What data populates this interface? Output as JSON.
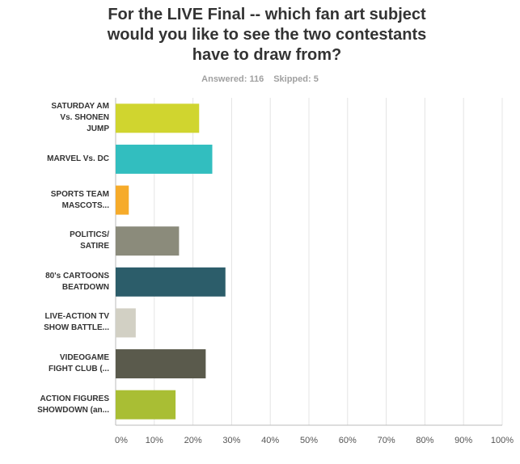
{
  "title_lines": [
    "For the LIVE Final -- which fan art subject",
    "would you like to see the two contestants",
    "have to draw from?"
  ],
  "stats": {
    "answered": "Answered: 116",
    "skipped": "Skipped: 5"
  },
  "chart_data": {
    "type": "bar",
    "orientation": "horizontal",
    "categories": [
      [
        "SATURDAY AM",
        "Vs. SHONEN",
        "JUMP"
      ],
      [
        "MARVEL Vs. DC"
      ],
      [
        "SPORTS TEAM",
        "MASCOTS..."
      ],
      [
        "POLITICS/",
        "SATIRE"
      ],
      [
        "80's CARTOONS",
        "BEATDOWN"
      ],
      [
        "LIVE-ACTION TV",
        "SHOW BATTLE..."
      ],
      [
        "VIDEOGAME",
        "FIGHT CLUB (..."
      ],
      [
        "ACTION FIGURES",
        "SHOWDOWN (an..."
      ]
    ],
    "values": [
      21.6,
      25.0,
      3.4,
      16.4,
      28.4,
      5.2,
      23.3,
      15.5
    ],
    "colors": [
      "#d0d52f",
      "#32bebf",
      "#f6ab2a",
      "#8b8b7b",
      "#2c5d6a",
      "#d2d0c4",
      "#5a5a4c",
      "#a9be34"
    ],
    "xlim": [
      0,
      100
    ],
    "x_ticks": [
      "0%",
      "10%",
      "20%",
      "30%",
      "40%",
      "50%",
      "60%",
      "70%",
      "80%",
      "90%",
      "100%"
    ],
    "grid": true
  }
}
